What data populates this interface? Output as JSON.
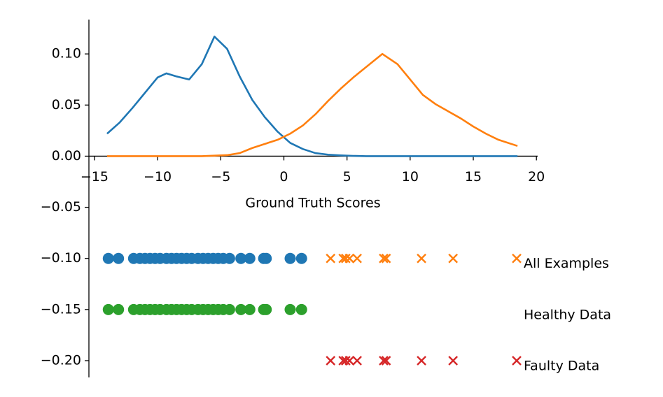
{
  "chart_data": {
    "type": "line",
    "xlabel": "Ground Truth Scores",
    "x": [
      -14,
      -13,
      -12,
      -11,
      -10,
      -9.3,
      -8.5,
      -7.5,
      -6.5,
      -5.5,
      -4.5,
      -3.5,
      -2.5,
      -1.5,
      -0.5,
      0.5,
      1.5,
      2.5,
      3.5,
      4.5,
      5.5,
      6.5,
      7.8,
      9,
      10,
      11,
      12,
      13,
      14,
      15,
      16,
      17,
      18.5
    ],
    "series": [
      {
        "color": "#1f77b4",
        "values": [
          0.022,
          0.033,
          0.047,
          0.062,
          0.077,
          0.081,
          0.078,
          0.075,
          0.09,
          0.117,
          0.105,
          0.078,
          0.055,
          0.038,
          0.024,
          0.013,
          0.007,
          0.003,
          0.0015,
          0.0008,
          0.0003,
          0,
          0,
          0,
          0,
          0,
          0,
          0,
          0,
          0,
          0,
          0,
          0
        ]
      },
      {
        "color": "#ff7f0e",
        "values": [
          0,
          0,
          0,
          0,
          0,
          0,
          0,
          0,
          0,
          0.0005,
          0.001,
          0.003,
          0.008,
          0.012,
          0.016,
          0.022,
          0.03,
          0.041,
          0.054,
          0.066,
          0.077,
          0.087,
          0.1,
          0.09,
          0.075,
          0.06,
          0.051,
          0.044,
          0.037,
          0.029,
          0.022,
          0.016,
          0.01
        ]
      }
    ],
    "points": [
      {
        "type": "scatter",
        "marker": "o",
        "color": "#1f77b4",
        "y": -0.1,
        "x": [
          -13.9,
          -13.1,
          -11.9,
          -11.4,
          -11.0,
          -10.6,
          -10.2,
          -9.8,
          -9.3,
          -8.9,
          -8.5,
          -8.1,
          -7.7,
          -7.3,
          -6.8,
          -6.4,
          -6.0,
          -5.6,
          -5.2,
          -4.8,
          -4.3,
          -3.4,
          -2.7,
          -1.6,
          -1.4,
          0.5,
          1.4
        ]
      },
      {
        "type": "scatter",
        "marker": "x",
        "color": "#ff7f0e",
        "y": -0.1,
        "name": "All Examples",
        "x": [
          3.7,
          4.7,
          4.9,
          5.2,
          5.8,
          7.9,
          8.1,
          10.9,
          13.4
        ]
      },
      {
        "type": "scatter",
        "marker": "o",
        "color": "#2ca02c",
        "y": -0.15,
        "name": "Healthy Data",
        "x": [
          -13.9,
          -13.1,
          -11.9,
          -11.4,
          -11.0,
          -10.6,
          -10.2,
          -9.8,
          -9.3,
          -8.9,
          -8.5,
          -8.1,
          -7.7,
          -7.3,
          -6.8,
          -6.4,
          -6.0,
          -5.6,
          -5.2,
          -4.8,
          -4.3,
          -3.4,
          -2.7,
          -1.6,
          -1.4,
          0.5,
          1.4
        ]
      },
      {
        "type": "scatter",
        "marker": "x",
        "color": "#d62728",
        "y": -0.2,
        "name": "Faulty Data",
        "x": [
          3.7,
          4.7,
          4.9,
          5.2,
          5.8,
          7.9,
          8.1,
          10.9,
          13.4
        ]
      }
    ],
    "xlim": [
      -15.44,
      20.1
    ],
    "ylim": [
      -0.2164,
      0.1336
    ],
    "xticks": [
      {
        "value": -15,
        "label": "−15"
      },
      {
        "value": -10,
        "label": "−10"
      },
      {
        "value": -5,
        "label": "−5"
      },
      0,
      5,
      10,
      15,
      20
    ],
    "yticks": [
      {
        "value": 0.1,
        "label": "0.10"
      },
      {
        "value": 0.05,
        "label": "0.05"
      },
      {
        "value": 0,
        "label": "0.00"
      },
      {
        "value": -0.05,
        "label": "−0.05"
      },
      {
        "value": -0.1,
        "label": "−0.10"
      },
      {
        "value": -0.15,
        "label": "−0.15"
      },
      {
        "value": -0.2,
        "label": "−0.20"
      }
    ]
  }
}
